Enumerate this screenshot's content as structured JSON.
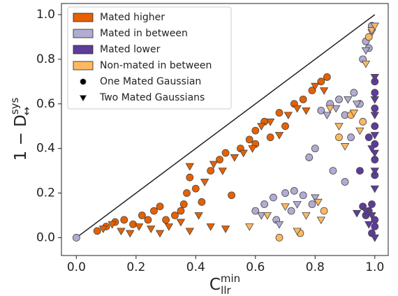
{
  "chart_data": {
    "type": "scatter",
    "xlabel": {
      "base": "C",
      "sub": "llr",
      "sup": "min"
    },
    "ylabel": {
      "base": "1 − D",
      "sub": "↔",
      "sup": "sys"
    },
    "xlim": [
      -0.05,
      1.045
    ],
    "ylim": [
      -0.08,
      1.05
    ],
    "xticks": [
      {
        "value": 0,
        "label": "0.0"
      },
      0.2,
      0.4,
      0.6,
      0.8,
      {
        "value": 1,
        "label": "1.0"
      }
    ],
    "yticks": [
      {
        "value": 0,
        "label": "0.0"
      },
      0.2,
      0.4,
      0.6,
      0.8,
      {
        "value": 1,
        "label": "1.0"
      }
    ],
    "grid": false,
    "legend": "upper left",
    "diagonal": {
      "x": [
        0,
        1
      ],
      "values": [
        0,
        1
      ],
      "color": "#222222"
    },
    "marker_legend": [
      {
        "name": "One Mated Gaussian",
        "marker": "circle"
      },
      {
        "name": "Two Mated Gaussians",
        "marker": "triangle"
      }
    ],
    "series": [
      {
        "name": "Mated higher",
        "color": "#e66101",
        "points": [
          {
            "marker": "circle",
            "x": [
              0.07,
              0.1,
              0.13,
              0.16,
              0.19,
              0.22,
              0.26,
              0.3,
              0.33,
              0.36,
              0.37,
              0.38,
              0.4,
              0.42,
              0.45,
              0.48,
              0.5,
              0.52,
              0.55,
              0.58,
              0.6,
              0.63,
              0.65,
              0.68,
              0.7,
              0.73,
              0.76,
              0.79,
              0.82,
              0.84,
              0.6,
              0.35,
              0.28,
              0.24
            ],
            "values": [
              0.03,
              0.05,
              0.07,
              0.08,
              0.06,
              0.1,
              0.12,
              0.08,
              0.1,
              0.15,
              0.2,
              0.27,
              0.22,
              0.16,
              0.3,
              0.35,
              0.38,
              0.19,
              0.4,
              0.44,
              0.48,
              0.52,
              0.45,
              0.56,
              0.5,
              0.6,
              0.62,
              0.66,
              0.7,
              0.72,
              0.42,
              0.12,
              0.14,
              0.08
            ]
          },
          {
            "marker": "triangle",
            "x": [
              0.09,
              0.12,
              0.15,
              0.18,
              0.21,
              0.25,
              0.28,
              0.31,
              0.35,
              0.38,
              0.41,
              0.43,
              0.46,
              0.49,
              0.53,
              0.56,
              0.59,
              0.62,
              0.65,
              0.68,
              0.71,
              0.74,
              0.77,
              0.8,
              0.83,
              0.45,
              0.5,
              0.38
            ],
            "values": [
              0.04,
              0.06,
              0.03,
              0.02,
              0.05,
              0.04,
              0.02,
              0.05,
              0.07,
              0.03,
              0.1,
              0.25,
              0.33,
              0.3,
              0.36,
              0.38,
              0.4,
              0.5,
              0.52,
              0.46,
              0.55,
              0.58,
              0.57,
              0.68,
              0.66,
              0.05,
              0.04,
              0.32
            ]
          }
        ]
      },
      {
        "name": "Mated in between",
        "color": "#b2abd2",
        "points": [
          {
            "marker": "circle",
            "x": [
              0.0,
              0.6,
              0.63,
              0.66,
              0.7,
              0.73,
              0.76,
              0.79,
              0.67,
              0.72,
              0.78,
              0.8,
              0.82,
              0.85,
              0.88,
              0.9,
              0.93,
              0.95,
              0.86,
              0.9,
              0.92,
              0.96,
              0.97,
              0.99,
              0.98
            ],
            "values": [
              0.0,
              0.12,
              0.15,
              0.18,
              0.2,
              0.21,
              0.19,
              0.15,
              0.08,
              0.12,
              0.36,
              0.4,
              0.57,
              0.6,
              0.62,
              0.55,
              0.65,
              0.6,
              0.3,
              0.25,
              0.45,
              0.8,
              0.88,
              0.95,
              0.85
            ]
          },
          {
            "marker": "triangle",
            "x": [
              0.62,
              0.68,
              0.74,
              0.8,
              0.84,
              0.87,
              0.91,
              0.94,
              0.97,
              0.99
            ],
            "values": [
              0.1,
              0.06,
              0.15,
              0.18,
              0.55,
              0.58,
              0.62,
              0.6,
              0.84,
              0.92
            ]
          }
        ]
      },
      {
        "name": "Mated lower",
        "color": "#5e3c99",
        "points": [
          {
            "marker": "circle",
            "x": [
              1.0,
              1.0,
              1.0,
              1.0,
              1.0,
              1.0,
              1.0,
              0.99,
              0.98,
              0.97,
              1.0,
              1.0,
              0.99,
              0.96,
              0.95,
              0.98
            ],
            "values": [
              0.7,
              0.65,
              0.58,
              0.5,
              0.42,
              0.35,
              0.28,
              0.15,
              0.12,
              0.1,
              0.08,
              0.05,
              0.02,
              0.14,
              0.3,
              0.45
            ]
          },
          {
            "marker": "triangle",
            "x": [
              1.0,
              1.0,
              1.0,
              1.0,
              1.0,
              1.0,
              1.0,
              0.99,
              0.98,
              1.0,
              0.97,
              0.94,
              0.99
            ],
            "values": [
              0.72,
              0.62,
              0.55,
              0.46,
              0.38,
              0.3,
              0.22,
              0.1,
              0.06,
              0.0,
              0.12,
              0.11,
              0.4
            ]
          }
        ]
      },
      {
        "name": "Non-mated in between",
        "color": "#fdb863",
        "points": [
          {
            "marker": "circle",
            "x": [
              0.68,
              0.75,
              0.83,
              0.88,
              0.92,
              0.96,
              0.98
            ],
            "values": [
              0.0,
              0.02,
              0.12,
              0.45,
              0.55,
              0.52,
              0.9
            ]
          },
          {
            "marker": "triangle",
            "x": [
              0.58,
              0.64,
              0.7,
              0.74,
              0.77,
              0.81,
              0.85,
              0.88,
              0.9,
              0.93,
              0.95,
              0.97,
              0.99,
              1.0,
              0.82
            ],
            "values": [
              0.05,
              0.1,
              0.14,
              0.03,
              0.1,
              0.16,
              0.58,
              0.5,
              0.41,
              0.56,
              0.48,
              0.78,
              0.93,
              0.95,
              0.08
            ]
          }
        ]
      }
    ]
  }
}
